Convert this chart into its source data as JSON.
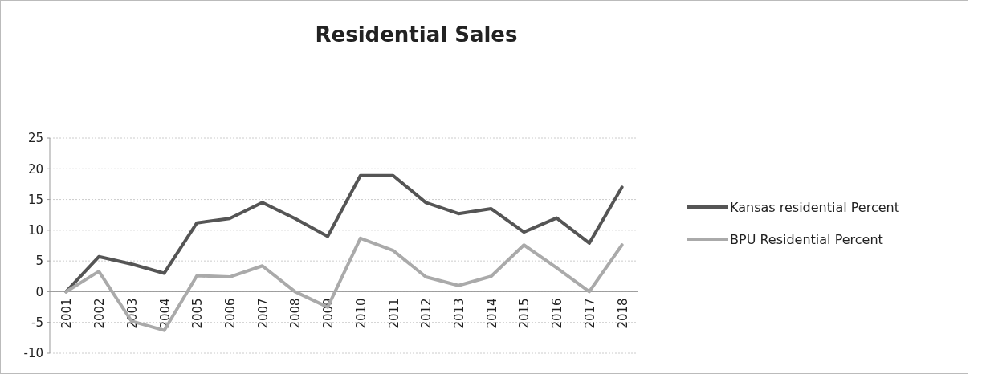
{
  "chart_data": {
    "type": "line",
    "title": "Residential Sales",
    "categories": [
      "2001",
      "2002",
      "2003",
      "2004",
      "2005",
      "2006",
      "2007",
      "2008",
      "2009",
      "2010",
      "2011",
      "2012",
      "2013",
      "2014",
      "2015",
      "2016",
      "2017",
      "2018"
    ],
    "series": [
      {
        "name": "Kansas residential Percent",
        "color": "#555555",
        "values": [
          0,
          5.7,
          4.5,
          3,
          11.2,
          11.9,
          14.5,
          11.9,
          9,
          18.9,
          18.9,
          14.5,
          12.7,
          13.5,
          9.7,
          12,
          7.9,
          17
        ]
      },
      {
        "name": "BPU Residential Percent",
        "color": "#aaaaaa",
        "values": [
          0,
          3.3,
          -4.8,
          -6.3,
          2.6,
          2.4,
          4.2,
          0,
          -2.5,
          8.7,
          6.7,
          2.4,
          1,
          2.5,
          7.6,
          3.9,
          0,
          7.6
        ]
      }
    ],
    "ylim": [
      -10,
      25
    ],
    "yticks": [
      -10,
      -5,
      0,
      5,
      10,
      15,
      20,
      25
    ],
    "grid": "y",
    "legend": "right",
    "marker": "none",
    "line_style": "solid"
  }
}
